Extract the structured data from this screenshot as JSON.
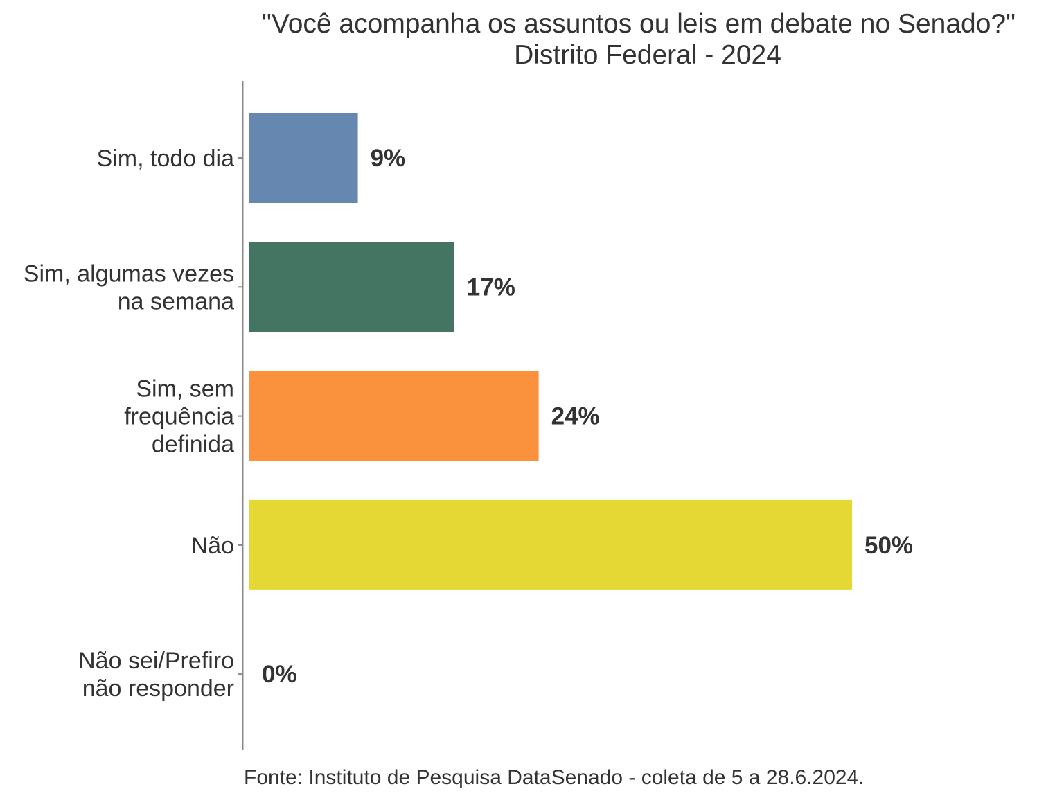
{
  "chart_data": {
    "type": "bar",
    "orientation": "horizontal",
    "title": "\"Você acompanha os assuntos ou leis em debate no Senado?\"",
    "subtitle": "Distrito Federal - 2024",
    "categories": [
      [
        "Sim, todo dia"
      ],
      [
        "Sim, algumas vezes",
        "na semana"
      ],
      [
        "Sim, sem",
        "frequência",
        "definida"
      ],
      [
        "Não"
      ],
      [
        "Não sei/Prefiro",
        "não responder"
      ]
    ],
    "values": [
      9,
      17,
      24,
      50,
      0
    ],
    "value_labels": [
      "9%",
      "17%",
      "24%",
      "50%",
      "0%"
    ],
    "colors": [
      "#6587B0",
      "#447462",
      "#FA913C",
      "#E5D835",
      "#999999"
    ],
    "xlabel": "",
    "ylabel": "",
    "xlim": [
      0,
      50
    ],
    "grid": false,
    "legend": "none",
    "source": "Fonte: Instituto de Pesquisa DataSenado - coleta de 5 a 28.6.2024."
  }
}
